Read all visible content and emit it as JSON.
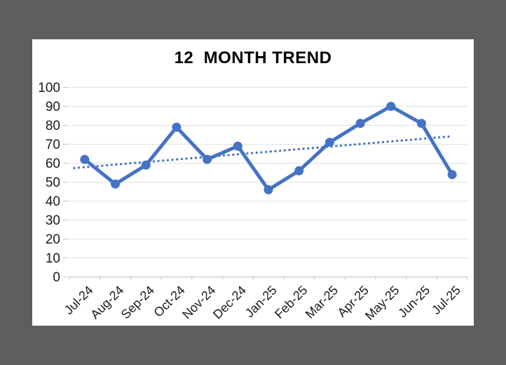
{
  "frame": {
    "background": "#5E5E5E",
    "panel_background": "#FFFFFF"
  },
  "chart_data": {
    "type": "line",
    "title": "12  MONTH TREND",
    "categories": [
      "Jul-24",
      "Aug-24",
      "Sep-24",
      "Oct-24",
      "Nov-24",
      "Dec-24",
      "Jan-25",
      "Feb-25",
      "Mar-25",
      "Apr-25",
      "May-25",
      "Jun-25",
      "Jul-25"
    ],
    "series": [
      {
        "values": [
          62,
          49,
          59,
          79,
          62,
          69,
          46,
          56,
          71,
          81,
          90,
          81,
          54
        ],
        "color": "#4472C4",
        "marker": "circle",
        "line_width": 5
      }
    ],
    "trendline": {
      "type": "linear",
      "style": "dotted",
      "start_value": 57.9,
      "end_value": 74.2,
      "color": "#4472C4"
    },
    "xlabel": "",
    "ylabel": "",
    "ylim": [
      0,
      100
    ],
    "yticks": [
      0,
      10,
      20,
      30,
      40,
      50,
      60,
      70,
      80,
      90,
      100
    ],
    "grid": "horizontal",
    "legend": "none",
    "x_label_rotation": -45,
    "grid_color": "#E0E0E0",
    "axis_color": "#C8C8C8",
    "label_color": "#1A1A1A"
  }
}
